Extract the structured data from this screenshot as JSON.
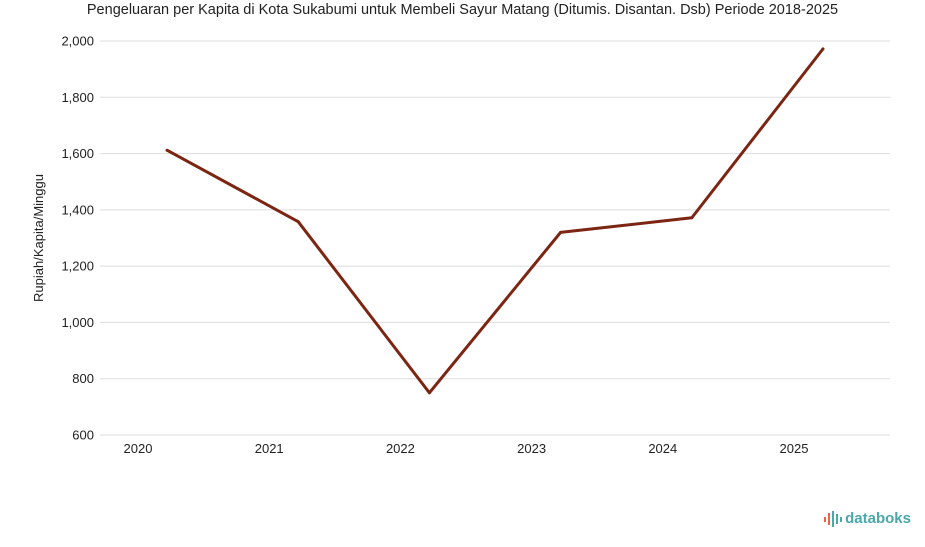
{
  "chart_data": {
    "type": "line",
    "title": "Pengeluaran per Kapita di Kota Sukabumi untuk Membeli Sayur Matang (Ditumis. Disantan. Dsb) Periode 2018-2025",
    "ylabel": "Rupiah/Kapita/Minggu",
    "xlabel": "",
    "categories": [
      "2020",
      "2021",
      "2022",
      "2023",
      "2024",
      "2025"
    ],
    "series": [
      {
        "values": [
          1612,
          1358,
          750,
          1320,
          1372,
          1972
        ]
      }
    ],
    "ylim": [
      600,
      2000
    ],
    "yticks": [
      600,
      800,
      1000,
      1200,
      1400,
      1600,
      1800,
      2000
    ],
    "ytick_labels": [
      "600",
      "800",
      "1,000",
      "1,200",
      "1,400",
      "1,600",
      "1,800",
      "2,000"
    ],
    "grid": true,
    "line_color": "#7b2512"
  },
  "brand": {
    "name": "databoks",
    "color": "#4aa8a8"
  }
}
